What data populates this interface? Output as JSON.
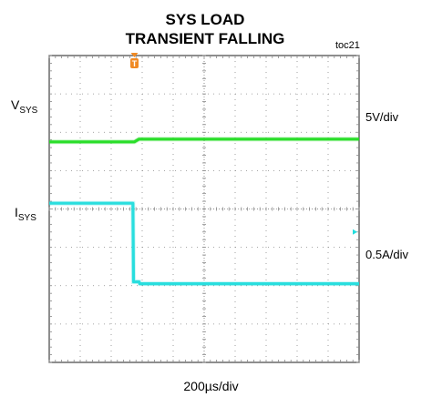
{
  "chart_data": {
    "type": "line",
    "title_line1": "SYS LOAD",
    "title_line2": "TRANSIENT FALLING",
    "figure_tag": "toc21",
    "x_scale_label": "200µs/div",
    "grid": true,
    "trigger_marker": "T",
    "colors": {
      "vsys": "#22dd22",
      "isys": "#22dddd",
      "trigger": "#f08a24",
      "grid": "#888888",
      "frame": "#444444"
    },
    "series": [
      {
        "name": "VSYS",
        "label_main": "V",
        "label_sub": "SYS",
        "scale_label": "5V/div",
        "x_div": [
          0,
          2.75,
          2.9,
          10
        ],
        "y_div": [
          5.75,
          5.75,
          5.82,
          5.82
        ]
      },
      {
        "name": "ISYS",
        "label_main": "I",
        "label_sub": "SYS",
        "scale_label": "0.5A/div",
        "x_div": [
          0,
          2.7,
          2.72,
          2.9,
          2.92,
          10
        ],
        "y_div": [
          4.15,
          4.15,
          2.1,
          2.1,
          2.05,
          2.05
        ]
      }
    ],
    "x_divisions": 10,
    "y_divisions": 8
  }
}
